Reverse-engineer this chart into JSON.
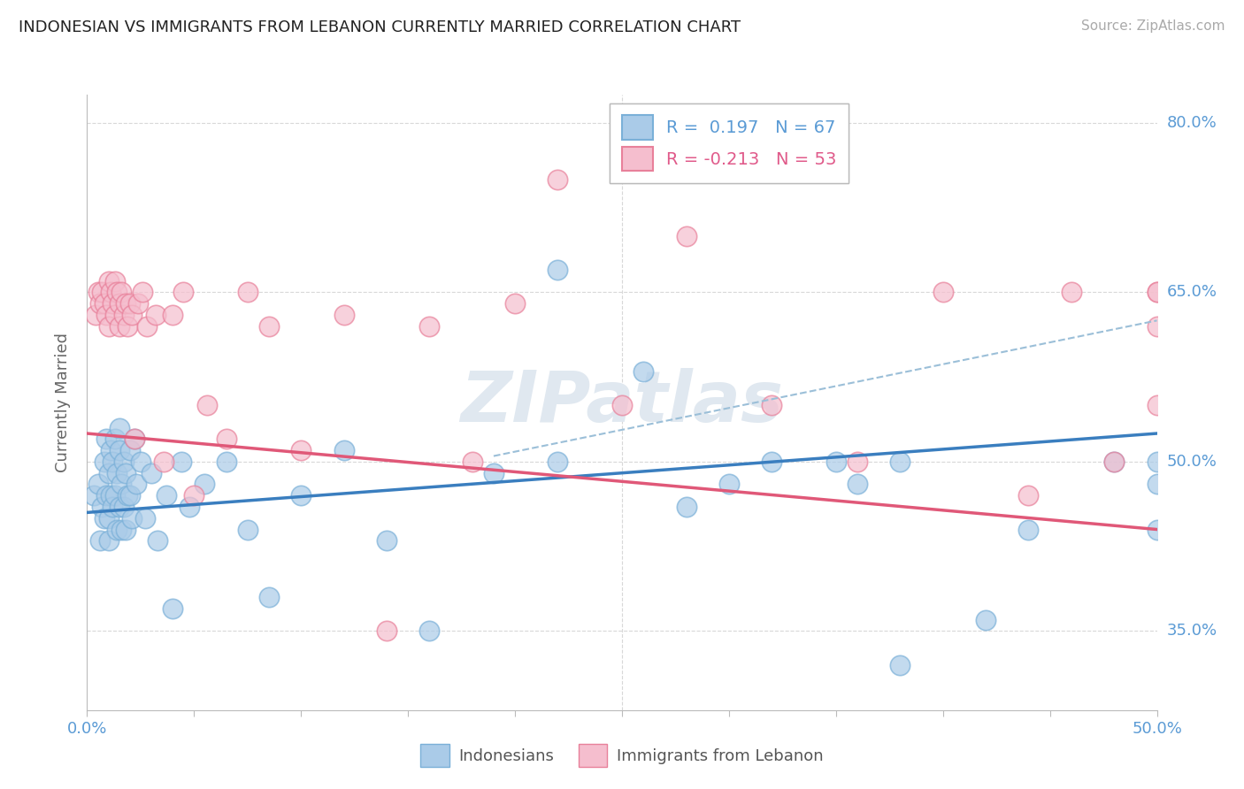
{
  "title": "INDONESIAN VS IMMIGRANTS FROM LEBANON CURRENTLY MARRIED CORRELATION CHART",
  "source": "Source: ZipAtlas.com",
  "ylabel": "Currently Married",
  "legend_1_label": "Indonesians",
  "legend_2_label": "Immigrants from Lebanon",
  "r1": 0.197,
  "n1": 67,
  "r2": -0.213,
  "n2": 53,
  "blue_color": "#aacbe8",
  "blue_edge_color": "#7ab0d8",
  "pink_color": "#f5bece",
  "pink_edge_color": "#e8809a",
  "blue_line_color": "#3a7ebf",
  "pink_line_color": "#e05878",
  "blue_dash_color": "#9bbfd8",
  "background_color": "#ffffff",
  "grid_color": "#d8d8d8",
  "xlim": [
    0.0,
    0.5
  ],
  "ylim": [
    0.28,
    0.825
  ],
  "yticks": [
    0.35,
    0.5,
    0.65,
    0.8
  ],
  "ytick_labels": [
    "35.0%",
    "50.0%",
    "65.0%",
    "80.0%"
  ],
  "blue_x": [
    0.003,
    0.005,
    0.006,
    0.007,
    0.008,
    0.008,
    0.009,
    0.009,
    0.01,
    0.01,
    0.01,
    0.011,
    0.011,
    0.012,
    0.012,
    0.013,
    0.013,
    0.014,
    0.014,
    0.015,
    0.015,
    0.015,
    0.016,
    0.016,
    0.017,
    0.017,
    0.018,
    0.018,
    0.019,
    0.02,
    0.02,
    0.021,
    0.022,
    0.023,
    0.025,
    0.027,
    0.03,
    0.033,
    0.037,
    0.04,
    0.044,
    0.048,
    0.055,
    0.065,
    0.075,
    0.085,
    0.1,
    0.12,
    0.14,
    0.16,
    0.19,
    0.22,
    0.26,
    0.3,
    0.35,
    0.38,
    0.22,
    0.28,
    0.32,
    0.38,
    0.42,
    0.36,
    0.44,
    0.48,
    0.5,
    0.5,
    0.5
  ],
  "blue_y": [
    0.47,
    0.48,
    0.43,
    0.46,
    0.5,
    0.45,
    0.52,
    0.47,
    0.49,
    0.45,
    0.43,
    0.51,
    0.47,
    0.5,
    0.46,
    0.52,
    0.47,
    0.49,
    0.44,
    0.51,
    0.46,
    0.53,
    0.48,
    0.44,
    0.5,
    0.46,
    0.49,
    0.44,
    0.47,
    0.51,
    0.47,
    0.45,
    0.52,
    0.48,
    0.5,
    0.45,
    0.49,
    0.43,
    0.47,
    0.37,
    0.5,
    0.46,
    0.48,
    0.5,
    0.44,
    0.38,
    0.47,
    0.51,
    0.43,
    0.35,
    0.49,
    0.67,
    0.58,
    0.48,
    0.5,
    0.32,
    0.5,
    0.46,
    0.5,
    0.5,
    0.36,
    0.48,
    0.44,
    0.5,
    0.48,
    0.5,
    0.44
  ],
  "pink_x": [
    0.004,
    0.005,
    0.006,
    0.007,
    0.008,
    0.009,
    0.01,
    0.01,
    0.011,
    0.012,
    0.013,
    0.013,
    0.014,
    0.015,
    0.015,
    0.016,
    0.017,
    0.018,
    0.019,
    0.02,
    0.021,
    0.022,
    0.024,
    0.026,
    0.028,
    0.032,
    0.036,
    0.04,
    0.045,
    0.05,
    0.056,
    0.065,
    0.075,
    0.085,
    0.1,
    0.12,
    0.14,
    0.16,
    0.18,
    0.2,
    0.22,
    0.25,
    0.28,
    0.32,
    0.36,
    0.4,
    0.44,
    0.46,
    0.48,
    0.5,
    0.5,
    0.5,
    0.5
  ],
  "pink_y": [
    0.63,
    0.65,
    0.64,
    0.65,
    0.64,
    0.63,
    0.66,
    0.62,
    0.65,
    0.64,
    0.66,
    0.63,
    0.65,
    0.64,
    0.62,
    0.65,
    0.63,
    0.64,
    0.62,
    0.64,
    0.63,
    0.52,
    0.64,
    0.65,
    0.62,
    0.63,
    0.5,
    0.63,
    0.65,
    0.47,
    0.55,
    0.52,
    0.65,
    0.62,
    0.51,
    0.63,
    0.35,
    0.62,
    0.5,
    0.64,
    0.75,
    0.55,
    0.7,
    0.55,
    0.5,
    0.65,
    0.47,
    0.65,
    0.5,
    0.55,
    0.65,
    0.65,
    0.62
  ],
  "blue_line_x0": 0.0,
  "blue_line_y0": 0.455,
  "blue_line_x1": 0.5,
  "blue_line_y1": 0.525,
  "pink_line_x0": 0.0,
  "pink_line_y0": 0.525,
  "pink_line_x1": 0.5,
  "pink_line_y1": 0.44,
  "dash_line_x0": 0.19,
  "dash_line_y0": 0.505,
  "dash_line_x1": 0.5,
  "dash_line_y1": 0.625
}
